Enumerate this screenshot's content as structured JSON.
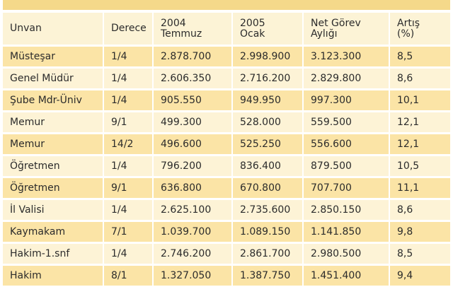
{
  "table": {
    "headers": [
      {
        "line1": "Unvan",
        "line2": ""
      },
      {
        "line1": "Derece",
        "line2": ""
      },
      {
        "line1": "2004",
        "line2": "Temmuz"
      },
      {
        "line1": "2005",
        "line2": "Ocak"
      },
      {
        "line1": "Net Görev",
        "line2": "Aylığı"
      },
      {
        "line1": "Artış",
        "line2": "(%)"
      }
    ],
    "rows": [
      [
        "Müsteşar",
        "1/4",
        "2.878.700",
        "2.998.900",
        "3.123.300",
        "8,5"
      ],
      [
        "Genel Müdür",
        "1/4",
        "2.606.350",
        "2.716.200",
        "2.829.800",
        "8,6"
      ],
      [
        "Şube Mdr-Üniv",
        "1/4",
        "905.550",
        "949.950",
        "997.300",
        "10,1"
      ],
      [
        "Memur",
        "9/1",
        "499.300",
        "528.000",
        "559.500",
        "12,1"
      ],
      [
        "Memur",
        "14/2",
        "496.600",
        "525.250",
        "556.600",
        "12,1"
      ],
      [
        "Öğretmen",
        "1/4",
        "796.200",
        "836.400",
        "879.500",
        "10,5"
      ],
      [
        "Öğretmen",
        "9/1",
        "636.800",
        "670.800",
        "707.700",
        "11,1"
      ],
      [
        "İl Valisi",
        "1/4",
        "2.625.100",
        "2.735.600",
        "2.850.150",
        "8,6"
      ],
      [
        "Kaymakam",
        "7/1",
        "1.039.700",
        "1.089.150",
        "1.141.850",
        "9,8"
      ],
      [
        "Hakim-1.snf",
        "1/4",
        "2.746.200",
        "2.861.700",
        "2.980.500",
        "8,5"
      ],
      [
        "Hakim",
        "8/1",
        "1.327.050",
        "1.387.750",
        "1.451.400",
        "9,4"
      ]
    ]
  }
}
